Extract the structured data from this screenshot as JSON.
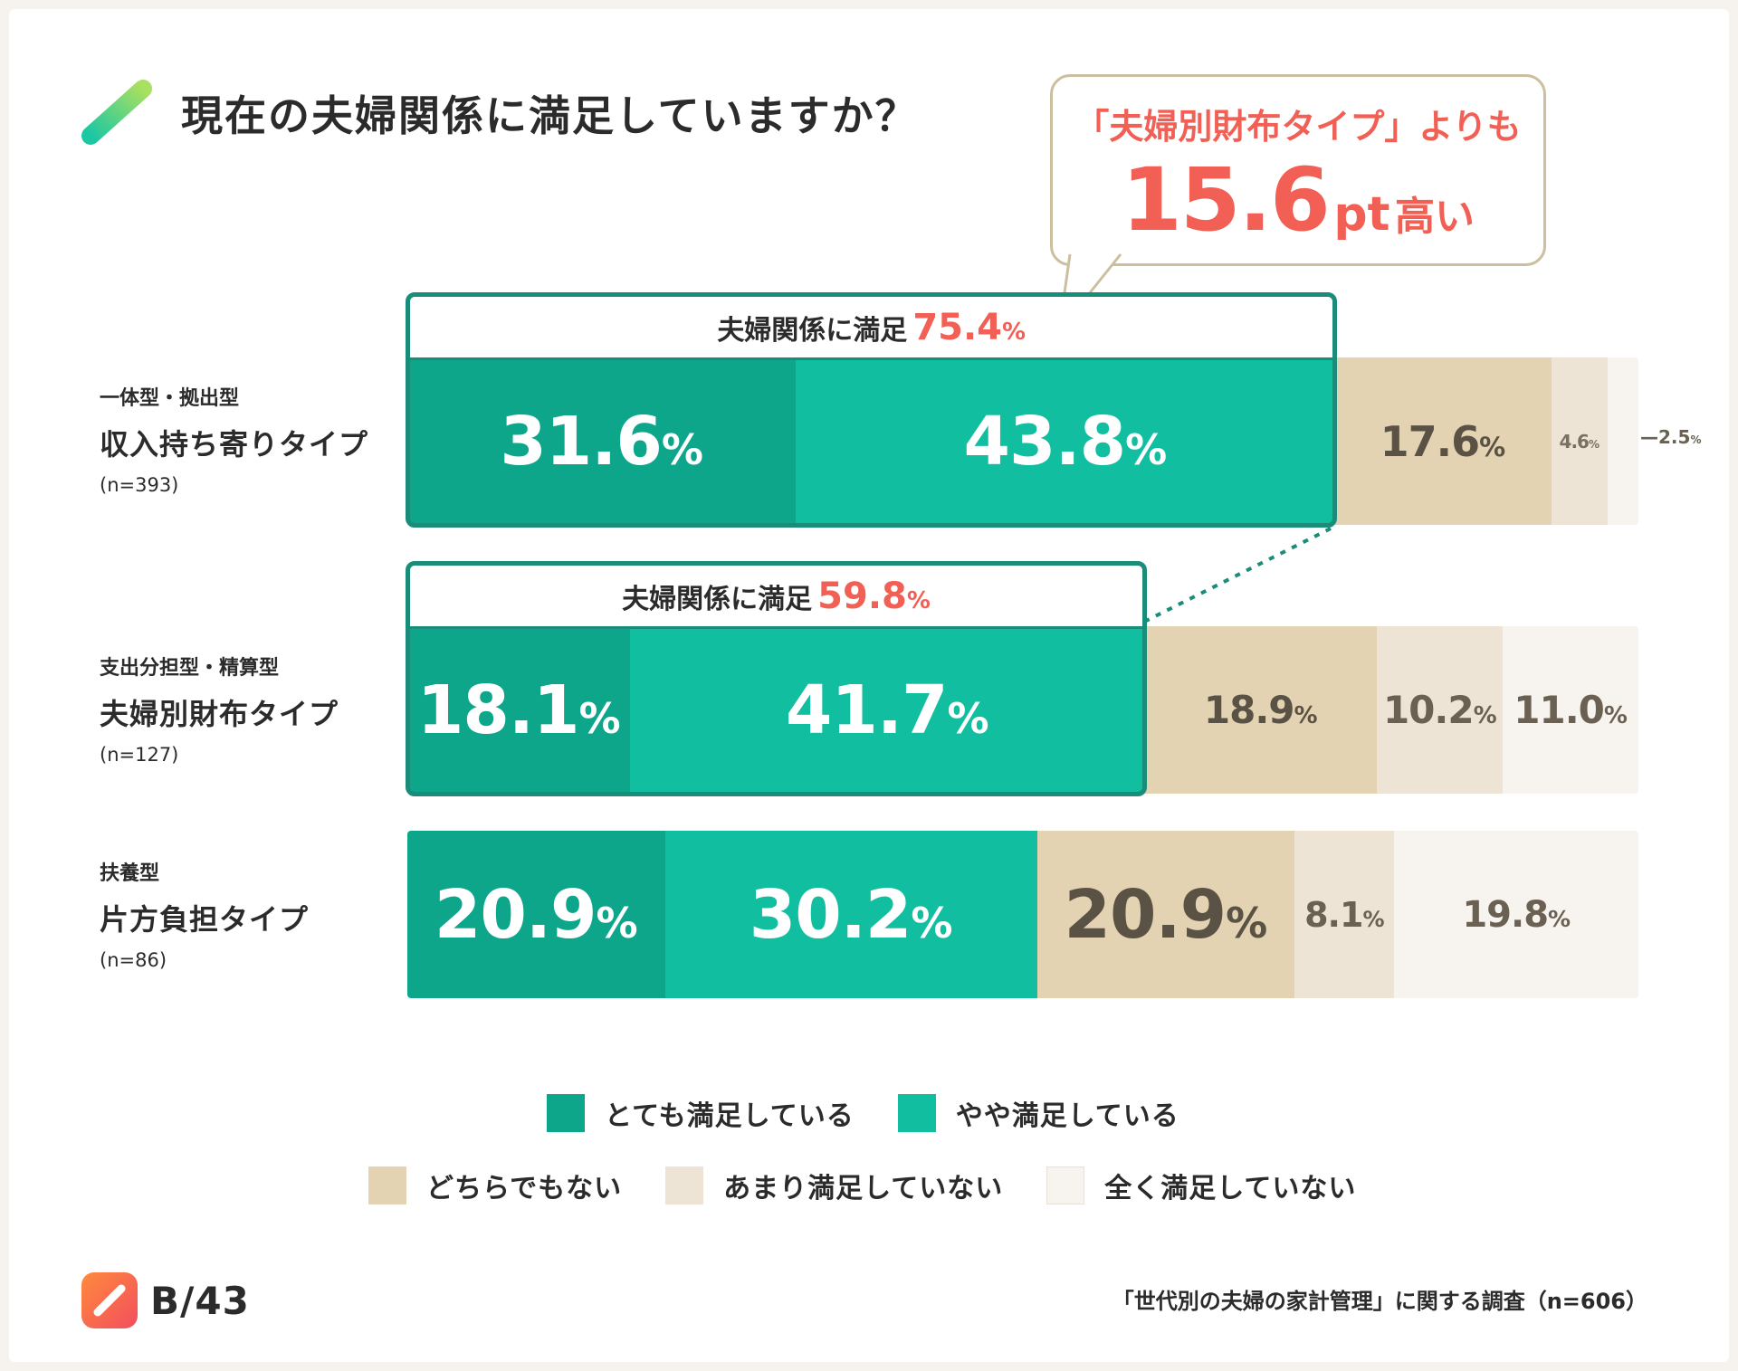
{
  "title": "現在の夫婦関係に満足していますか？",
  "callout": {
    "line1": "「夫婦別財布タイプ」よりも",
    "value": "15.6",
    "unit": "pt",
    "suffix": "高い"
  },
  "colors": {
    "very_satisfied": "#0ea68b",
    "somewhat_satisfied": "#12bea0",
    "neutral": "#e3d3b3",
    "not_very": "#eee4d6",
    "not_at_all": "#f7f4ef",
    "accent": "#f25f54",
    "outline": "#1a8d7a"
  },
  "rows": [
    {
      "sub": "一体型・拠出型",
      "main": "収入持ち寄りタイプ",
      "n": "(n=393)",
      "satisfied_label": "夫婦関係に満足",
      "satisfied_value": "75.4"
    },
    {
      "sub": "支出分担型・精算型",
      "main": "夫婦別財布タイプ",
      "n": "(n=127)",
      "satisfied_label": "夫婦関係に満足",
      "satisfied_value": "59.8"
    },
    {
      "sub": "扶養型",
      "main": "片方負担タイプ",
      "n": "(n=86)"
    }
  ],
  "chart_data": {
    "type": "bar",
    "orientation": "horizontal",
    "stacked": true,
    "categories": [
      "収入持ち寄りタイプ",
      "夫婦別財布タイプ",
      "片方負担タイプ"
    ],
    "series": [
      {
        "name": "とても満足している",
        "values": [
          31.6,
          18.1,
          20.9
        ]
      },
      {
        "name": "やや満足している",
        "values": [
          43.8,
          41.7,
          30.2
        ]
      },
      {
        "name": "どちらでもない",
        "values": [
          17.6,
          18.9,
          20.9
        ]
      },
      {
        "name": "あまり満足していない",
        "values": [
          4.6,
          10.2,
          8.1
        ]
      },
      {
        "name": "全く満足していない",
        "values": [
          2.5,
          11.0,
          19.8
        ]
      }
    ],
    "unit": "%",
    "legend_position": "bottom"
  },
  "legend": {
    "row1": [
      "とても満足している",
      "やや満足している"
    ],
    "row2": [
      "どちらでもない",
      "あまり満足していない",
      "全く満足していない"
    ]
  },
  "logo": "B/43",
  "source": "「世代別の夫婦の家計管理」に関する調査（n=606）"
}
